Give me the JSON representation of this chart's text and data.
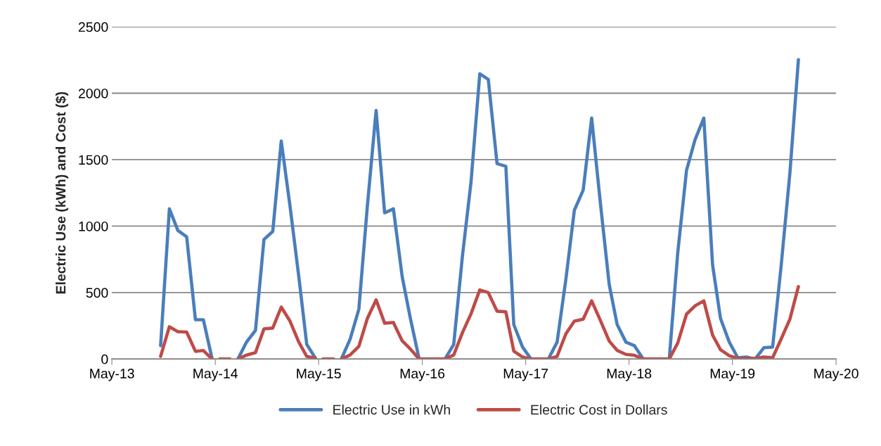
{
  "chart_data": {
    "type": "line",
    "ylabel": "Electric Use (kWh) and Cost ($)",
    "x": [
      "2013-10-20",
      "2013-11-20",
      "2013-12-20",
      "2014-01-20",
      "2014-02-20",
      "2014-03-20",
      "2014-04-20",
      "2014-05-05",
      "2014-05-16",
      "2014-06-22",
      "2014-07-05",
      "2014-07-20",
      "2014-08-20",
      "2014-09-20",
      "2014-10-20",
      "2014-11-20",
      "2014-12-20",
      "2015-01-20",
      "2015-02-20",
      "2015-03-20",
      "2015-04-20",
      "2015-05-05",
      "2015-05-16",
      "2015-06-23",
      "2015-07-05",
      "2015-07-20",
      "2015-08-20",
      "2015-09-20",
      "2015-10-20",
      "2015-11-20",
      "2015-12-20",
      "2016-01-20",
      "2016-02-20",
      "2016-03-20",
      "2016-04-20",
      "2016-05-20",
      "2016-06-20",
      "2016-07-20",
      "2016-08-20",
      "2016-09-20",
      "2016-10-20",
      "2016-11-20",
      "2016-12-20",
      "2017-01-20",
      "2017-02-20",
      "2017-03-20",
      "2017-04-20",
      "2017-05-20",
      "2017-06-20",
      "2017-07-20",
      "2017-08-20",
      "2017-09-20",
      "2017-10-20",
      "2017-11-20",
      "2017-12-20",
      "2018-01-20",
      "2018-02-20",
      "2018-03-20",
      "2018-04-20",
      "2018-05-20",
      "2018-06-20",
      "2018-07-20",
      "2018-08-20",
      "2018-09-20",
      "2018-10-20",
      "2018-11-20",
      "2018-12-20",
      "2019-01-20",
      "2019-02-20",
      "2019-03-20",
      "2019-04-20",
      "2019-05-20",
      "2019-06-20",
      "2019-07-20",
      "2019-08-20",
      "2019-09-20",
      "2019-10-20",
      "2019-11-20",
      "2019-12-20"
    ],
    "series": [
      {
        "name": "Electric Use in kWh",
        "color": "#4a7ebb",
        "values": [
          100,
          1130,
          967,
          920,
          296,
          296,
          0,
          null,
          null,
          null,
          null,
          0,
          130,
          215,
          900,
          960,
          1640,
          1150,
          620,
          110,
          5,
          null,
          null,
          null,
          null,
          0,
          148,
          375,
          1150,
          1870,
          1100,
          1130,
          620,
          305,
          0,
          0,
          0,
          0,
          110,
          780,
          1330,
          2146,
          2104,
          1470,
          1450,
          260,
          90,
          0,
          0,
          0,
          127,
          600,
          1120,
          1270,
          1813,
          1170,
          560,
          260,
          127,
          100,
          0,
          0,
          0,
          0,
          800,
          1420,
          1650,
          1813,
          708,
          305,
          127,
          10,
          15,
          0,
          85,
          90,
          700,
          1400,
          2252
        ]
      },
      {
        "name": "Electric Cost in Dollars",
        "color": "#be4b48",
        "values": [
          20,
          243,
          206,
          203,
          58,
          64,
          0,
          null,
          0,
          0,
          null,
          0,
          30,
          48,
          227,
          233,
          391,
          285,
          127,
          20,
          5,
          null,
          0,
          0,
          null,
          0,
          30,
          95,
          305,
          445,
          270,
          275,
          137,
          75,
          0,
          0,
          0,
          0,
          30,
          200,
          340,
          520,
          500,
          360,
          355,
          60,
          15,
          0,
          0,
          0,
          20,
          190,
          285,
          300,
          438,
          290,
          135,
          65,
          35,
          28,
          0,
          0,
          0,
          0,
          120,
          338,
          400,
          438,
          180,
          70,
          25,
          5,
          5,
          5,
          15,
          10,
          150,
          300,
          545
        ]
      }
    ],
    "xlim": [
      "2013-05-01",
      "2020-05-01"
    ],
    "xticks": [
      {
        "value": "2013-05-01",
        "label": "May-13"
      },
      {
        "value": "2014-05-01",
        "label": "May-14"
      },
      {
        "value": "2015-05-01",
        "label": "May-15"
      },
      {
        "value": "2016-05-01",
        "label": "May-16"
      },
      {
        "value": "2017-05-01",
        "label": "May-17"
      },
      {
        "value": "2018-05-01",
        "label": "May-18"
      },
      {
        "value": "2019-05-01",
        "label": "May-19"
      },
      {
        "value": "2020-05-01",
        "label": "May-20"
      }
    ],
    "ylim": [
      0,
      2500
    ],
    "yticks": [
      0,
      500,
      1000,
      1500,
      2000,
      2500
    ],
    "grid": "y",
    "legend": "bottom",
    "line_style": "solid",
    "marker": "none"
  }
}
